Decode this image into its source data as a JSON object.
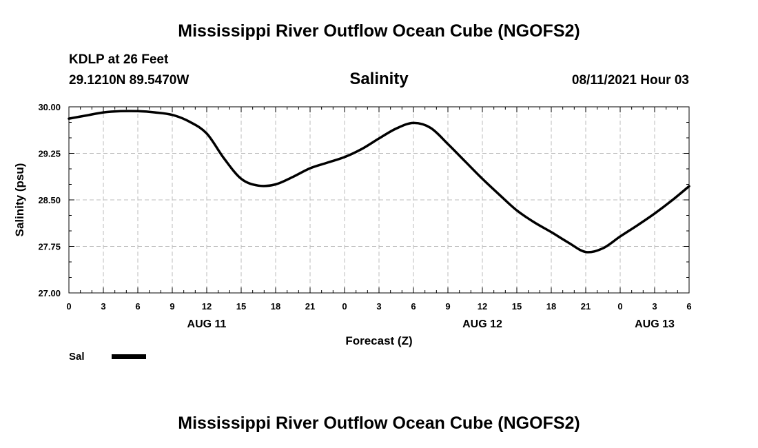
{
  "header": {
    "title": "Mississippi River Outflow Ocean Cube (NGOFS2)",
    "station": "KDLP at 26 Feet",
    "coordinates": "29.1210N  89.5470W",
    "variable": "Salinity",
    "run_time": "08/11/2021 Hour 03"
  },
  "footer": {
    "title": "Mississippi River Outflow Ocean Cube (NGOFS2)"
  },
  "chart_data": {
    "type": "line",
    "title": "Salinity",
    "xlabel": "Forecast (Z)",
    "ylabel": "Salinity (psu)",
    "ylim": [
      27.0,
      30.0
    ],
    "xlim": [
      0,
      54
    ],
    "grid": true,
    "yticks": [
      27.0,
      27.75,
      28.5,
      29.25,
      30.0
    ],
    "ytick_labels": [
      "27.00",
      "27.75",
      "28.50",
      "29.25",
      "30.00"
    ],
    "xticks": [
      0,
      3,
      6,
      9,
      12,
      15,
      18,
      21,
      24,
      27,
      30,
      33,
      36,
      39,
      42,
      45,
      48,
      51,
      54
    ],
    "xtick_labels": [
      "0",
      "3",
      "6",
      "9",
      "12",
      "15",
      "18",
      "21",
      "0",
      "3",
      "6",
      "9",
      "12",
      "15",
      "18",
      "21",
      "0",
      "3",
      "6"
    ],
    "day_labels": [
      {
        "label": "AUG 11",
        "x": 12
      },
      {
        "label": "AUG 12",
        "x": 36
      },
      {
        "label": "AUG 13",
        "x": 51
      }
    ],
    "series": [
      {
        "name": "Sal",
        "color": "#000000",
        "x": [
          0,
          1.5,
          3,
          4.5,
          6,
          7.5,
          9,
          10.5,
          12,
          13.5,
          15,
          16.5,
          18,
          19.5,
          21,
          22.5,
          24,
          25.5,
          27,
          28.5,
          30,
          31.5,
          33,
          34.5,
          36,
          37.5,
          39,
          40.5,
          42,
          43.5,
          45,
          46.5,
          48,
          49.5,
          51,
          52.5,
          54
        ],
        "values": [
          29.81,
          29.86,
          29.91,
          29.93,
          29.93,
          29.91,
          29.87,
          29.76,
          29.57,
          29.17,
          28.84,
          28.73,
          28.75,
          28.87,
          29.01,
          29.1,
          29.19,
          29.32,
          29.49,
          29.65,
          29.74,
          29.66,
          29.4,
          29.12,
          28.84,
          28.58,
          28.33,
          28.14,
          27.98,
          27.81,
          27.66,
          27.72,
          27.91,
          28.09,
          28.28,
          28.49,
          28.72
        ]
      }
    ],
    "legend": {
      "position": "bottom-left",
      "label": "Sal"
    }
  }
}
